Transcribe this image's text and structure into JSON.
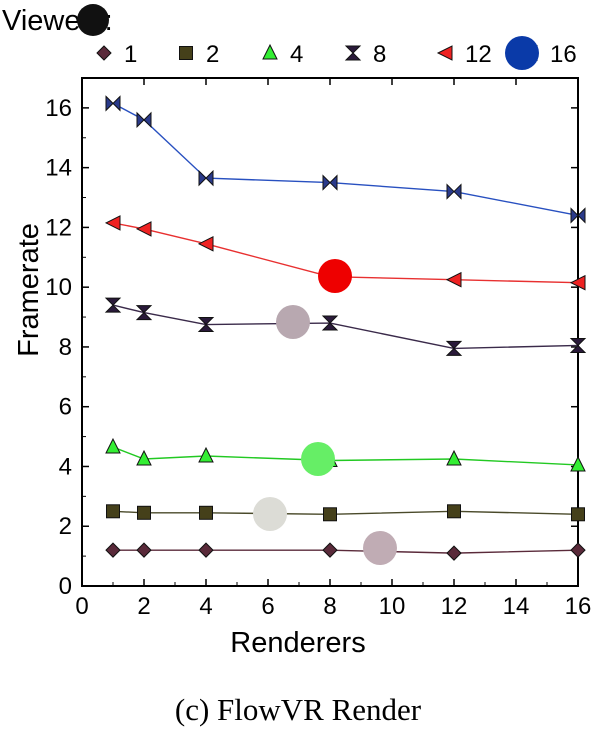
{
  "caption": "(c)  FlowVR Render",
  "chart_data": {
    "type": "line",
    "title": "",
    "xlabel": "Renderers",
    "ylabel": "Framerate",
    "xlim": [
      0,
      16
    ],
    "ylim": [
      0,
      17
    ],
    "xticks": [
      0,
      2,
      4,
      6,
      8,
      10,
      12,
      14,
      16
    ],
    "yticks": [
      0,
      2,
      4,
      6,
      8,
      10,
      12,
      14,
      16
    ],
    "grid": false,
    "legend": {
      "title": "Viewers:",
      "placement": "top"
    },
    "x": [
      1,
      2,
      4,
      8,
      12,
      16
    ],
    "series": [
      {
        "name": "1",
        "marker": "diamond",
        "color": "#5a2a3a",
        "fill": "#5a2a3a",
        "values": [
          1.2,
          1.2,
          1.2,
          1.2,
          1.1,
          1.2
        ]
      },
      {
        "name": "2",
        "marker": "square",
        "color": "#4a4a2a",
        "fill": "#45401a",
        "values": [
          2.5,
          2.45,
          2.45,
          2.4,
          2.5,
          2.4
        ]
      },
      {
        "name": "4",
        "marker": "triangle",
        "color": "#22c922",
        "fill": "#33ee33",
        "values": [
          4.65,
          4.25,
          4.35,
          4.2,
          4.25,
          4.05
        ]
      },
      {
        "name": "8",
        "marker": "hourglass",
        "color": "#3a2a4a",
        "fill": "#2a1a3a",
        "values": [
          9.4,
          9.15,
          8.75,
          8.8,
          7.95,
          8.05
        ]
      },
      {
        "name": "12",
        "marker": "tri-left",
        "color": "#e83030",
        "fill": "#ee2222",
        "values": [
          12.15,
          11.95,
          11.45,
          10.35,
          10.25,
          10.15
        ]
      },
      {
        "name": "16",
        "marker": "bowtie",
        "color": "#2850c0",
        "fill": "#2a3a8a",
        "values": [
          16.15,
          15.6,
          13.65,
          13.5,
          13.2,
          12.4
        ]
      }
    ]
  },
  "overlay_dots": [
    {
      "color": "#111111"
    },
    {
      "color": "#0a3aa8"
    },
    {
      "color": "#ee0000"
    },
    {
      "color": "#b8a8b0"
    },
    {
      "color": "#66ee66"
    },
    {
      "color": "#dcdcd6"
    },
    {
      "color": "#c0acb4"
    }
  ]
}
